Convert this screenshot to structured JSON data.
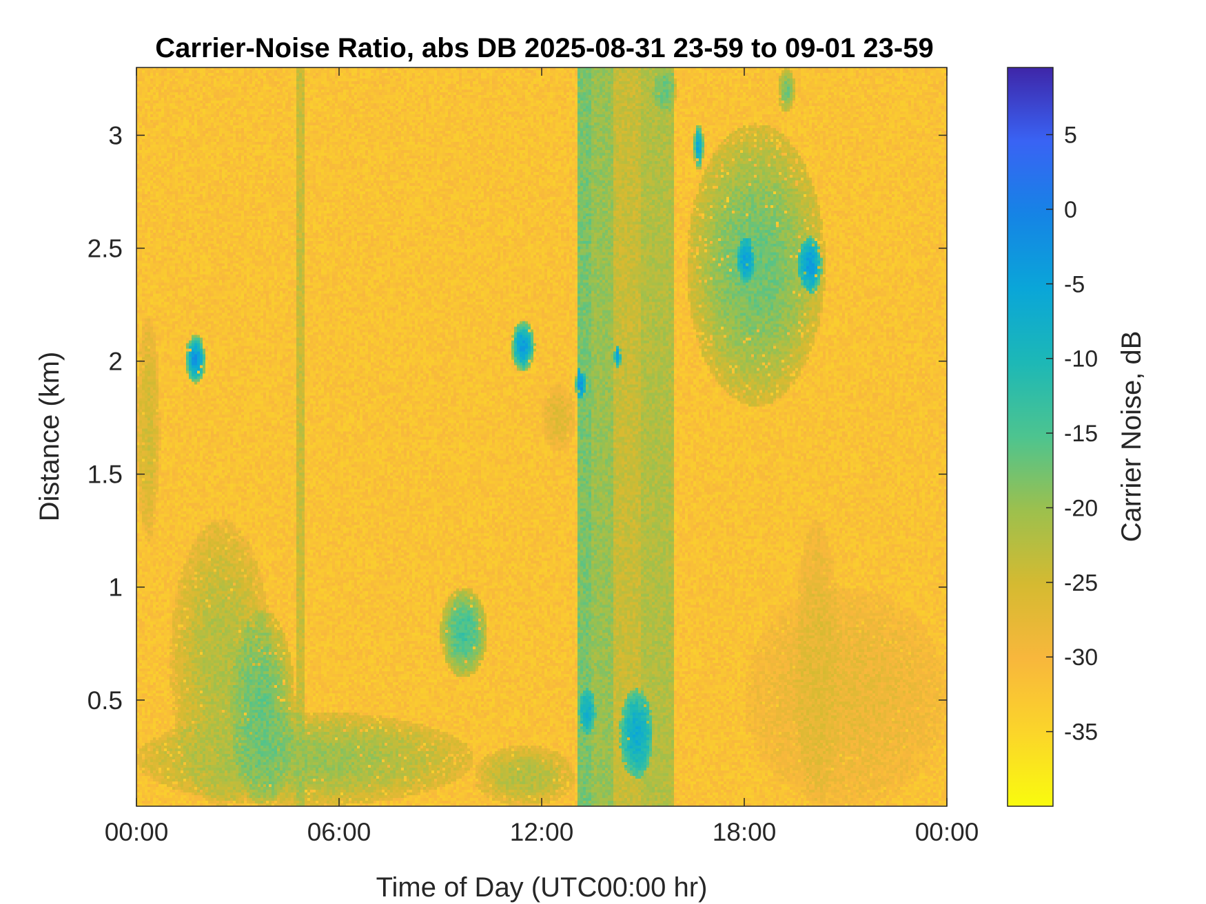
{
  "chart_data": {
    "type": "heatmap",
    "title": "Carrier-Noise Ratio, abs DB 2025-08-31 23-59 to 09-01 23-59",
    "xlabel": "Time of Day (UTC00:00 hr)",
    "ylabel": "Distance (km)",
    "colorbar_label": "Carrier Noise, dB",
    "xlim": [
      0,
      24
    ],
    "ylim": [
      0.03,
      3.3
    ],
    "clim": [
      -40,
      9.5
    ],
    "x_ticks": [
      0,
      6,
      12,
      18,
      24
    ],
    "x_tick_labels": [
      "00:00",
      "06:00",
      "12:00",
      "18:00",
      "00:00"
    ],
    "y_ticks": [
      0.5,
      1,
      1.5,
      2,
      2.5,
      3
    ],
    "y_tick_labels": [
      "0.5",
      "1",
      "1.5",
      "2",
      "2.5",
      "3"
    ],
    "colorbar_ticks": [
      5,
      0,
      -5,
      -10,
      -15,
      -20,
      -25,
      -30,
      -35
    ],
    "colorbar_tick_labels": [
      "5",
      "0",
      "-5",
      "-10",
      "-15",
      "-20",
      "-25",
      "-30",
      "-35"
    ],
    "colormap": "parula",
    "background_value_db": -32,
    "features": [
      {
        "kind": "band",
        "x": [
          4.75,
          4.95
        ],
        "y": [
          0.03,
          3.3
        ],
        "value": -24
      },
      {
        "kind": "band",
        "x": [
          13.1,
          13.5
        ],
        "y": [
          0.03,
          3.3
        ],
        "value": -18
      },
      {
        "kind": "band",
        "x": [
          13.5,
          14.1
        ],
        "y": [
          0.03,
          3.3
        ],
        "value": -20
      },
      {
        "kind": "band",
        "x": [
          14.1,
          14.9
        ],
        "y": [
          0.03,
          3.3
        ],
        "value": -24
      },
      {
        "kind": "band",
        "x": [
          14.9,
          15.9
        ],
        "y": [
          0.03,
          3.3
        ],
        "value": -22
      },
      {
        "kind": "blob",
        "x": [
          0.0,
          0.7
        ],
        "y": [
          1.2,
          2.2
        ],
        "value": -25
      },
      {
        "kind": "blob",
        "x": [
          0.0,
          10.0
        ],
        "y": [
          0.03,
          0.45
        ],
        "value": -20
      },
      {
        "kind": "blob",
        "x": [
          10.0,
          13.0
        ],
        "y": [
          0.03,
          0.3
        ],
        "value": -22
      },
      {
        "kind": "blob",
        "x": [
          1.0,
          4.0
        ],
        "y": [
          0.03,
          1.3
        ],
        "value": -22
      },
      {
        "kind": "blob",
        "x": [
          2.8,
          4.7
        ],
        "y": [
          0.03,
          0.9
        ],
        "value": -17
      },
      {
        "kind": "blob",
        "x": [
          1.45,
          2.05
        ],
        "y": [
          1.9,
          2.12
        ],
        "value": -3
      },
      {
        "kind": "blob",
        "x": [
          11.1,
          11.8
        ],
        "y": [
          1.95,
          2.18
        ],
        "value": -4
      },
      {
        "kind": "blob",
        "x": [
          13.0,
          13.3
        ],
        "y": [
          1.83,
          1.97
        ],
        "value": -3
      },
      {
        "kind": "blob",
        "x": [
          14.15,
          14.35
        ],
        "y": [
          1.97,
          2.07
        ],
        "value": -4
      },
      {
        "kind": "blob",
        "x": [
          9.0,
          10.4
        ],
        "y": [
          0.6,
          1.0
        ],
        "value": -14
      },
      {
        "kind": "blob",
        "x": [
          13.1,
          13.6
        ],
        "y": [
          0.35,
          0.55
        ],
        "value": -8
      },
      {
        "kind": "blob",
        "x": [
          14.3,
          15.3
        ],
        "y": [
          0.15,
          0.55
        ],
        "value": -7
      },
      {
        "kind": "blob",
        "x": [
          15.3,
          16.0
        ],
        "y": [
          3.1,
          3.3
        ],
        "value": -17
      },
      {
        "kind": "blob",
        "x": [
          16.3,
          20.4
        ],
        "y": [
          1.8,
          3.05
        ],
        "value": -17
      },
      {
        "kind": "blob",
        "x": [
          16.5,
          16.8
        ],
        "y": [
          2.85,
          3.05
        ],
        "value": -6
      },
      {
        "kind": "blob",
        "x": [
          17.8,
          18.3
        ],
        "y": [
          2.35,
          2.55
        ],
        "value": -5
      },
      {
        "kind": "blob",
        "x": [
          19.6,
          20.3
        ],
        "y": [
          2.3,
          2.55
        ],
        "value": -4
      },
      {
        "kind": "blob",
        "x": [
          19.0,
          19.5
        ],
        "y": [
          3.1,
          3.3
        ],
        "value": -17
      },
      {
        "kind": "blob",
        "x": [
          12.0,
          13.0
        ],
        "y": [
          1.6,
          1.9
        ],
        "value": -27
      },
      {
        "kind": "blob",
        "x": [
          18.0,
          24.0
        ],
        "y": [
          0.03,
          1.0
        ],
        "value": -28
      },
      {
        "kind": "blob",
        "x": [
          19.5,
          20.8
        ],
        "y": [
          0.03,
          1.3
        ],
        "value": -27
      }
    ]
  }
}
